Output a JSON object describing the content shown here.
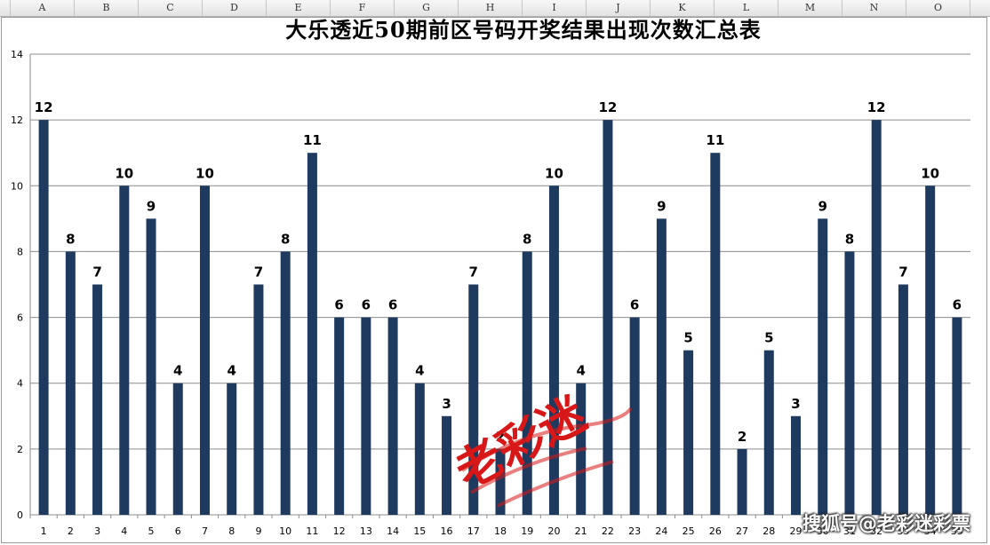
{
  "spreadsheet": {
    "columns": [
      "A",
      "B",
      "C",
      "D",
      "E",
      "F",
      "G",
      "H",
      "I",
      "J",
      "K",
      "L",
      "M",
      "N",
      "O"
    ]
  },
  "chart_data": {
    "type": "bar",
    "title": "大乐透近50期前区号码开奖结果出现次数汇总表",
    "xlabel": "",
    "ylabel": "",
    "ylim": [
      0,
      14
    ],
    "yticks": [
      0,
      2,
      4,
      6,
      8,
      10,
      12,
      14
    ],
    "grid": true,
    "legend": "none",
    "bar_color": "#1f3a5f",
    "categories": [
      "1",
      "2",
      "3",
      "4",
      "5",
      "6",
      "7",
      "8",
      "9",
      "10",
      "11",
      "12",
      "13",
      "14",
      "15",
      "16",
      "17",
      "18",
      "19",
      "20",
      "21",
      "22",
      "23",
      "24",
      "25",
      "26",
      "27",
      "28",
      "29",
      "30",
      "31",
      "32",
      "33",
      "34",
      "35"
    ],
    "values": [
      12,
      8,
      7,
      10,
      9,
      4,
      10,
      4,
      7,
      8,
      11,
      6,
      6,
      6,
      4,
      3,
      7,
      2,
      8,
      10,
      4,
      12,
      6,
      9,
      5,
      11,
      2,
      5,
      3,
      9,
      8,
      12,
      7,
      10,
      6
    ]
  },
  "watermarks": {
    "center": "老彩迷",
    "corner": "搜狐号@老彩迷彩票"
  }
}
